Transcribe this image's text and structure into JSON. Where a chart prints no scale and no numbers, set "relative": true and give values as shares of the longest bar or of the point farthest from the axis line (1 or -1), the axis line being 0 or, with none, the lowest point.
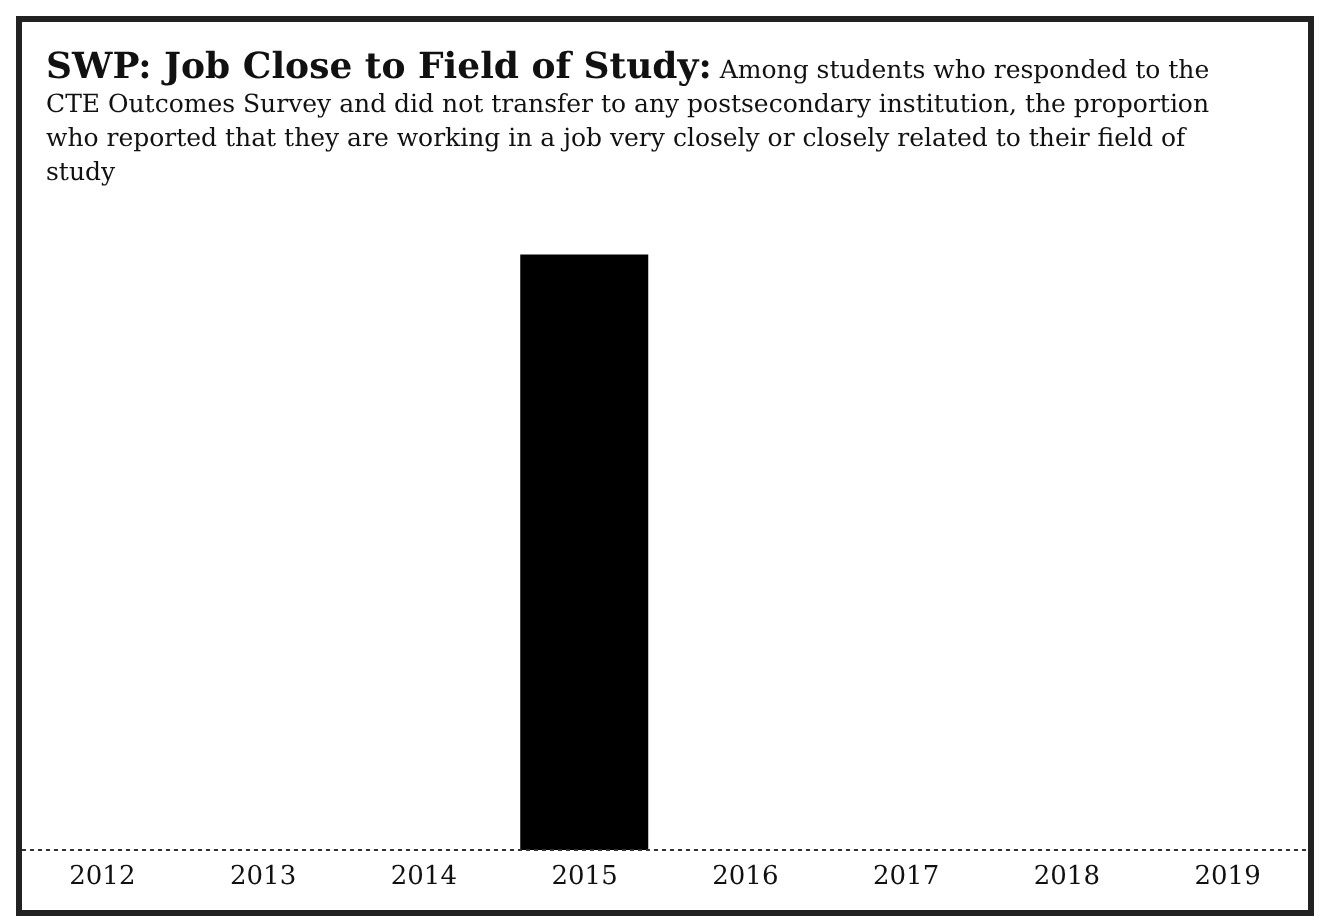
{
  "chart_data": {
    "type": "bar",
    "title": "SWP: Job Close to Field of Study:",
    "subtitle": "Among students who responded to the CTE Outcomes Survey and did not transfer to any postsecondary institution, the proportion who reported that they are working in a job very closely or closely related to their field of study",
    "categories": [
      "2012",
      "2013",
      "2014",
      "2015",
      "2016",
      "2017",
      "2018",
      "2019"
    ],
    "values": [
      null,
      null,
      null,
      1,
      null,
      null,
      null,
      null
    ],
    "color": "#000000",
    "relative": true,
    "grid": false,
    "legend": false
  }
}
